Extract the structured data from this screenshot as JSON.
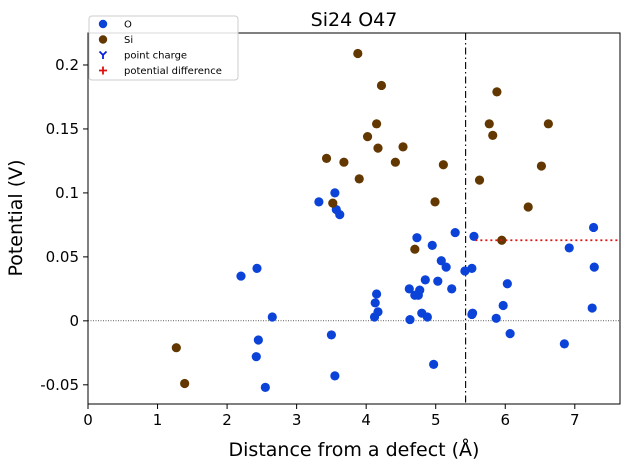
{
  "chart_data": {
    "type": "scatter",
    "title": "Si24 O47",
    "xlabel": "Distance from a defect (Å)",
    "ylabel": "Potential (V)",
    "xlim": [
      0,
      7.65
    ],
    "ylim": [
      -0.065,
      0.225
    ],
    "x_ticks": [
      0,
      1,
      2,
      3,
      4,
      5,
      6,
      7
    ],
    "x_tick_labels": [
      "0",
      "1",
      "2",
      "3",
      "4",
      "5",
      "6",
      "7"
    ],
    "y_ticks": [
      -0.05,
      0,
      0.05,
      0.1,
      0.15,
      0.2
    ],
    "y_tick_labels": [
      "-0.05",
      "0",
      "0.05",
      "0.1",
      "0.15",
      "0.2"
    ],
    "grid": false,
    "legend_position": "top-left",
    "colors": {
      "O": "#0b43d9",
      "Si": "#633800",
      "point_charge": "#0b1fd9",
      "potential_difference": "#e01010"
    },
    "legend": [
      {
        "key": "O",
        "label": "O",
        "marker": "circle"
      },
      {
        "key": "Si",
        "label": "Si",
        "marker": "circle"
      },
      {
        "key": "point_charge",
        "label": "point charge",
        "marker": "tri"
      },
      {
        "key": "potential_difference",
        "label": "potential difference",
        "marker": "plus"
      }
    ],
    "series": [
      {
        "name": "O",
        "points": [
          [
            2.2,
            0.035
          ],
          [
            2.43,
            0.041
          ],
          [
            2.42,
            -0.028
          ],
          [
            2.45,
            -0.015
          ],
          [
            2.55,
            -0.052
          ],
          [
            2.65,
            0.003
          ],
          [
            3.32,
            0.093
          ],
          [
            3.5,
            -0.011
          ],
          [
            3.55,
            -0.043
          ],
          [
            3.55,
            0.1
          ],
          [
            3.57,
            0.087
          ],
          [
            3.62,
            0.083
          ],
          [
            4.12,
            0.003
          ],
          [
            4.13,
            0.014
          ],
          [
            4.15,
            0.021
          ],
          [
            4.17,
            0.007
          ],
          [
            4.62,
            0.025
          ],
          [
            4.63,
            0.001
          ],
          [
            4.7,
            0.02
          ],
          [
            4.73,
            0.065
          ],
          [
            4.75,
            0.02
          ],
          [
            4.77,
            0.024
          ],
          [
            4.8,
            0.006
          ],
          [
            4.85,
            0.032
          ],
          [
            4.88,
            0.003
          ],
          [
            4.95,
            0.059
          ],
          [
            4.97,
            -0.034
          ],
          [
            5.03,
            0.031
          ],
          [
            5.08,
            0.047
          ],
          [
            5.15,
            0.042
          ],
          [
            5.23,
            0.025
          ],
          [
            5.28,
            0.069
          ],
          [
            5.42,
            0.039
          ],
          [
            5.52,
            0.041
          ],
          [
            5.52,
            0.005
          ],
          [
            5.53,
            0.006
          ],
          [
            5.55,
            0.066
          ],
          [
            5.87,
            0.002
          ],
          [
            5.97,
            0.012
          ],
          [
            6.03,
            0.029
          ],
          [
            6.07,
            -0.01
          ],
          [
            6.85,
            -0.018
          ],
          [
            6.92,
            0.057
          ],
          [
            7.25,
            0.01
          ],
          [
            7.27,
            0.073
          ],
          [
            7.28,
            0.042
          ]
        ]
      },
      {
        "name": "Si",
        "points": [
          [
            1.27,
            -0.021
          ],
          [
            1.39,
            -0.049
          ],
          [
            3.43,
            0.127
          ],
          [
            3.52,
            0.092
          ],
          [
            3.68,
            0.124
          ],
          [
            3.88,
            0.209
          ],
          [
            3.9,
            0.111
          ],
          [
            4.02,
            0.144
          ],
          [
            4.15,
            0.154
          ],
          [
            4.17,
            0.135
          ],
          [
            4.22,
            0.184
          ],
          [
            4.42,
            0.124
          ],
          [
            4.53,
            0.136
          ],
          [
            4.7,
            0.056
          ],
          [
            4.99,
            0.093
          ],
          [
            5.11,
            0.122
          ],
          [
            5.63,
            0.11
          ],
          [
            5.77,
            0.154
          ],
          [
            5.82,
            0.145
          ],
          [
            5.88,
            0.179
          ],
          [
            5.95,
            0.063
          ],
          [
            6.33,
            0.089
          ],
          [
            6.52,
            0.121
          ],
          [
            6.62,
            0.154
          ]
        ]
      }
    ],
    "reference_lines": {
      "zero_line_y": 0,
      "defect_distance_x": 5.43,
      "potential_difference": {
        "x_start": 5.57,
        "x_end": 7.65,
        "y": 0.063
      }
    }
  }
}
